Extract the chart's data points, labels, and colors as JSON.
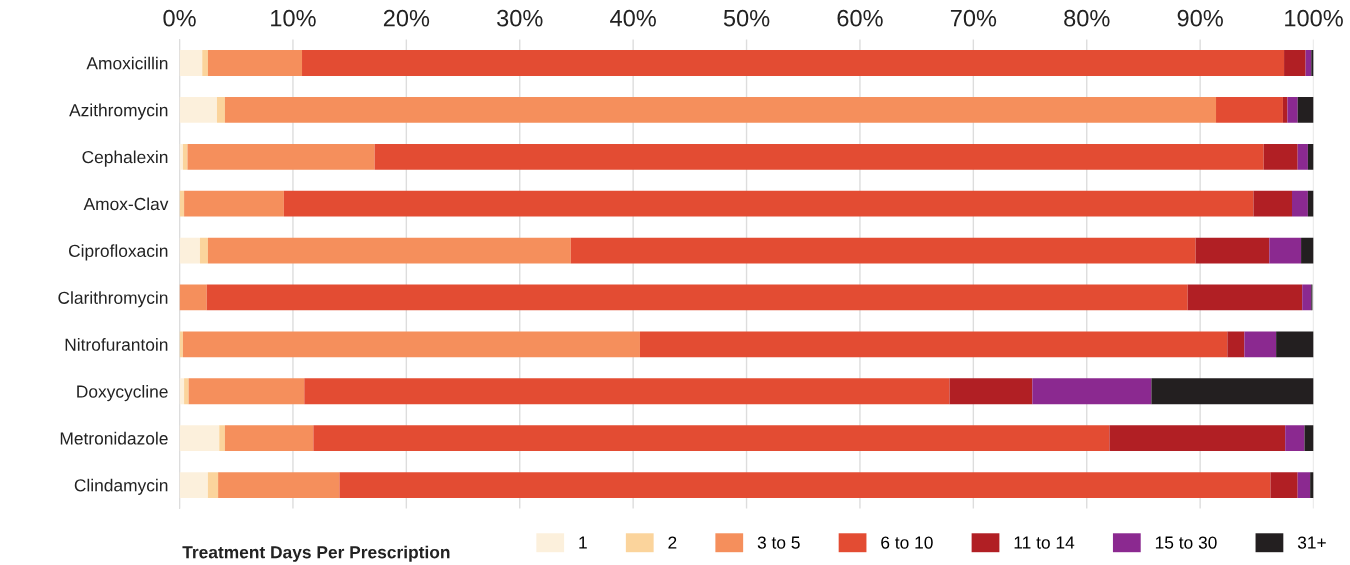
{
  "chart_data": {
    "type": "bar",
    "orientation": "horizontal",
    "stacked": true,
    "categories": [
      "Amoxicillin",
      "Azithromycin",
      "Cephalexin",
      "Amox-Clav",
      "Ciprofloxacin",
      "Clarithromycin",
      "Nitrofurantoin",
      "Doxycycline",
      "Metronidazole",
      "Clindamycin"
    ],
    "series": [
      {
        "name": "1",
        "color": "#fcf0dc",
        "values": [
          2.0,
          3.3,
          0.3,
          0,
          1.8,
          null,
          0,
          0.4,
          3.5,
          2.5
        ]
      },
      {
        "name": "2",
        "color": "#fbd49c",
        "values": [
          0.5,
          0.7,
          0.4,
          0.4,
          0.7,
          0,
          0.3,
          0.4,
          0.5,
          0.9
        ]
      },
      {
        "name": "3 to 5",
        "color": "#f58f5c",
        "values": [
          8.3,
          87.4,
          16.5,
          8.8,
          32.0,
          2.4,
          40.3,
          10.2,
          7.8,
          10.7
        ]
      },
      {
        "name": "6 to 10",
        "color": "#e34c33",
        "values": [
          86.6,
          5.9,
          78.4,
          85.5,
          55.1,
          86.5,
          51.8,
          56.9,
          70.2,
          82.1
        ]
      },
      {
        "name": "11 to 14",
        "color": "#b11f24",
        "values": [
          1.9,
          0.4,
          3.0,
          3.4,
          6.5,
          10.1,
          1.5,
          7.3,
          15.5,
          2.4
        ]
      },
      {
        "name": "15 to 30",
        "color": "#8b2990",
        "values": [
          0.5,
          0.9,
          0.9,
          1.4,
          2.8,
          0.8,
          2.8,
          10.5,
          1.7,
          1.1
        ]
      },
      {
        "name": "31+",
        "color": "#231f20",
        "values": [
          0.2,
          1.4,
          0.5,
          0.5,
          1.1,
          0.1,
          3.3,
          14.3,
          0.8,
          0.3
        ]
      }
    ],
    "xlim": [
      0,
      100
    ],
    "xticks": [
      {
        "value": 0,
        "label": "0%"
      },
      {
        "value": 10,
        "label": "10%"
      },
      {
        "value": 20,
        "label": "20%"
      },
      {
        "value": 30,
        "label": "30%"
      },
      {
        "value": 40,
        "label": "40%"
      },
      {
        "value": 50,
        "label": "50%"
      },
      {
        "value": 60,
        "label": "60%"
      },
      {
        "value": 70,
        "label": "70%"
      },
      {
        "value": 80,
        "label": "80%"
      },
      {
        "value": 90,
        "label": "90%"
      },
      {
        "value": 100,
        "label": "100%"
      }
    ],
    "grid": "x",
    "legend": "bottom",
    "legend_title": "Treatment Days Per Prescription"
  }
}
